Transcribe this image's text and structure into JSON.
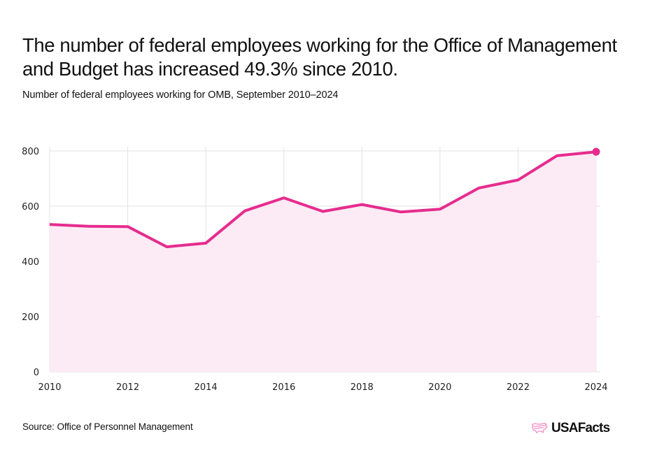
{
  "header": {
    "title": "The number of federal employees working for the Office of Management and Budget has increased 49.3% since 2010.",
    "subtitle": "Number of federal employees working for OMB, September 2010–2024"
  },
  "footer": {
    "source": "Source: Office of Personnel Management",
    "logo_text": "USAFacts",
    "logo_icon": "usa-map-icon"
  },
  "colors": {
    "line": "#E62C8E",
    "area": "#FCEBF4",
    "grid": "#E6E0E4",
    "logo_icon": "#F08CC4"
  },
  "chart_data": {
    "type": "area",
    "title": "The number of federal employees working for the Office of Management and Budget has increased 49.3% since 2010.",
    "subtitle": "Number of federal employees working for OMB, September 2010–2024",
    "xlabel": "",
    "ylabel": "",
    "x": [
      2010,
      2011,
      2012,
      2013,
      2014,
      2015,
      2016,
      2017,
      2018,
      2019,
      2020,
      2021,
      2022,
      2023,
      2024
    ],
    "series": [
      {
        "name": "OMB federal employees",
        "values": [
          534,
          527,
          526,
          453,
          466,
          583,
          630,
          581,
          606,
          579,
          589,
          666,
          695,
          783,
          797
        ]
      }
    ],
    "xlim": [
      2010,
      2024
    ],
    "ylim": [
      0,
      800
    ],
    "xticks": [
      2010,
      2012,
      2014,
      2016,
      2018,
      2020,
      2022,
      2024
    ],
    "yticks": [
      0,
      200,
      400,
      600,
      800
    ],
    "grid": true,
    "legend": "none",
    "annotations": [
      "end-point marker on 2024"
    ]
  }
}
